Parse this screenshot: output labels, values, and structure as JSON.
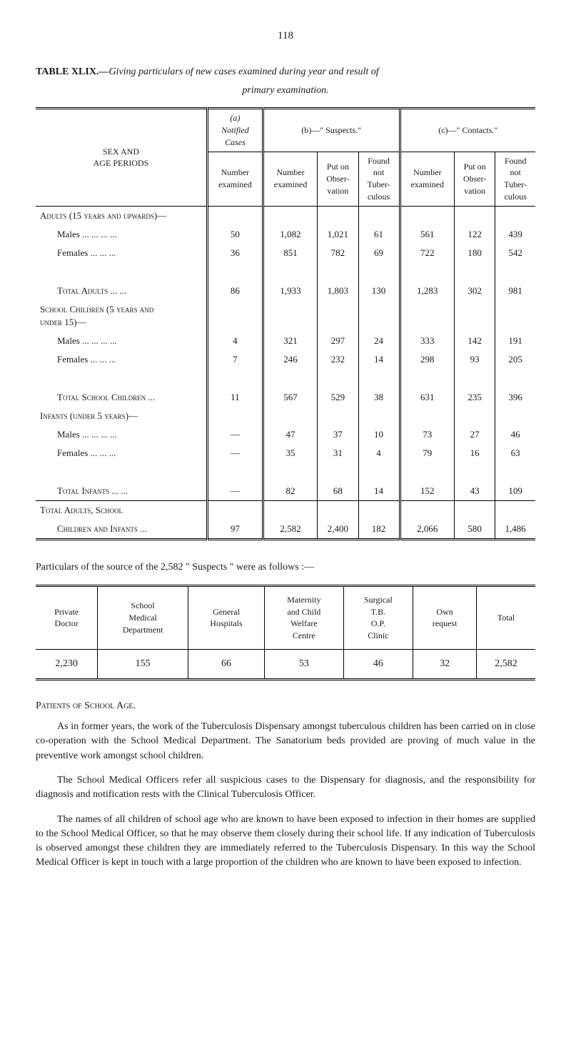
{
  "page_number": "118",
  "table_title_prefix": "TABLE XLIX.—",
  "table_title_rest": "Giving particulars of new cases examined during year and result of",
  "table_subtitle": "primary examination.",
  "main_table": {
    "col_group_labels": {
      "sex_age": "SEX AND\nAGE PERIODS",
      "a": "(a)\nNotified\nCases",
      "b": "(b)—\" Suspects.\"",
      "c": "(c)—\" Contacts.\""
    },
    "sub_headers": {
      "number_examined_a": "Number\nexamined",
      "number_examined_b": "Number\nexamined",
      "put_on_obs_b": "Put on\nObser-\nvation",
      "found_not_tb_b": "Found\nnot\nTuber-\nculous",
      "number_examined_c": "Number\nexamined",
      "put_on_obs_c": "Put on\nObser-\nvation",
      "found_not_tb_c": "Found\nnot\nTuber-\nculous"
    },
    "sections": [
      {
        "heading": "Adults (15 years and upwards)—",
        "rows": [
          {
            "label": "Males ...   ...   ...   ...",
            "a": "50",
            "b1": "1,082",
            "b2": "1,021",
            "b3": "61",
            "c1": "561",
            "c2": "122",
            "c3": "439"
          },
          {
            "label": "Females       ...   ...   ...",
            "a": "36",
            "b1": "851",
            "b2": "782",
            "b3": "69",
            "c1": "722",
            "c2": "180",
            "c3": "542"
          }
        ],
        "total": {
          "label": "Total Adults       ...   ...",
          "a": "86",
          "b1": "1,933",
          "b2": "1,803",
          "b3": "130",
          "c1": "1,283",
          "c2": "302",
          "c3": "981"
        }
      },
      {
        "heading": "School Children (5 years and\n   under 15)—",
        "rows": [
          {
            "label": "Males ...   ...   ...   ...",
            "a": "4",
            "b1": "321",
            "b2": "297",
            "b3": "24",
            "c1": "333",
            "c2": "142",
            "c3": "191"
          },
          {
            "label": "Females       ...   ...   ...",
            "a": "7",
            "b1": "246",
            "b2": "232",
            "b3": "14",
            "c1": "298",
            "c2": "93",
            "c3": "205"
          }
        ],
        "total": {
          "label": "Total School Children ...",
          "a": "11",
          "b1": "567",
          "b2": "529",
          "b3": "38",
          "c1": "631",
          "c2": "235",
          "c3": "396"
        }
      },
      {
        "heading": "Infants (under 5 years)—",
        "rows": [
          {
            "label": "Males ...   ...   ...   ...",
            "a": "—",
            "b1": "47",
            "b2": "37",
            "b3": "10",
            "c1": "73",
            "c2": "27",
            "c3": "46"
          },
          {
            "label": "Females       ...   ...   ...",
            "a": "—",
            "b1": "35",
            "b2": "31",
            "b3": "4",
            "c1": "79",
            "c2": "16",
            "c3": "63"
          }
        ],
        "total": {
          "label": "Total Infants       ...   ...",
          "a": "—",
          "b1": "82",
          "b2": "68",
          "b3": "14",
          "c1": "152",
          "c2": "43",
          "c3": "109"
        }
      }
    ],
    "grand_total_heading": "Total Adults, School",
    "grand_total": {
      "label": "Children and Infants   ...",
      "a": "97",
      "b1": "2,582",
      "b2": "2,400",
      "b3": "182",
      "c1": "2,066",
      "c2": "580",
      "c3": "1,486"
    }
  },
  "particulars_caption": "Particulars of the source of the 2,582 \" Suspects \" were as follows :—",
  "particulars_table": {
    "headers": [
      "Private\nDoctor",
      "School\nMedical\nDepartment",
      "General\nHospitals",
      "Maternity\nand Child\nWelfare\nCentre",
      "Surgical\nT.B.\nO.P.\nClinic",
      "Own\nrequest",
      "Total"
    ],
    "row": [
      "2,230",
      "155",
      "66",
      "53",
      "46",
      "32",
      "2,582"
    ]
  },
  "section_heading": "Patients of School Age.",
  "paragraphs": [
    "As in former years, the work of the Tuberculosis Dispensary amongst tuberculous children has been carried on in close co-operation with the School Medical Department. The Sanatorium beds provided are proving of much value in the preventive work amongst school children.",
    "The School Medical Officers refer all suspicious cases to the Dispensary for diagnosis, and the responsibility for diagnosis and notification rests with the Clinical Tuberculosis Officer.",
    "The names of all children of school age who are known to have been exposed to infection in their homes are supplied to the School Medical Officer, so that he may observe them closely during their school life. If any indication of Tuberculosis is observed amongst these children they are immediately referred to the Tuberculosis Dispensary. In this way the School Medical Officer is kept in touch with a large proportion of the children who are known to have been exposed to infection."
  ]
}
